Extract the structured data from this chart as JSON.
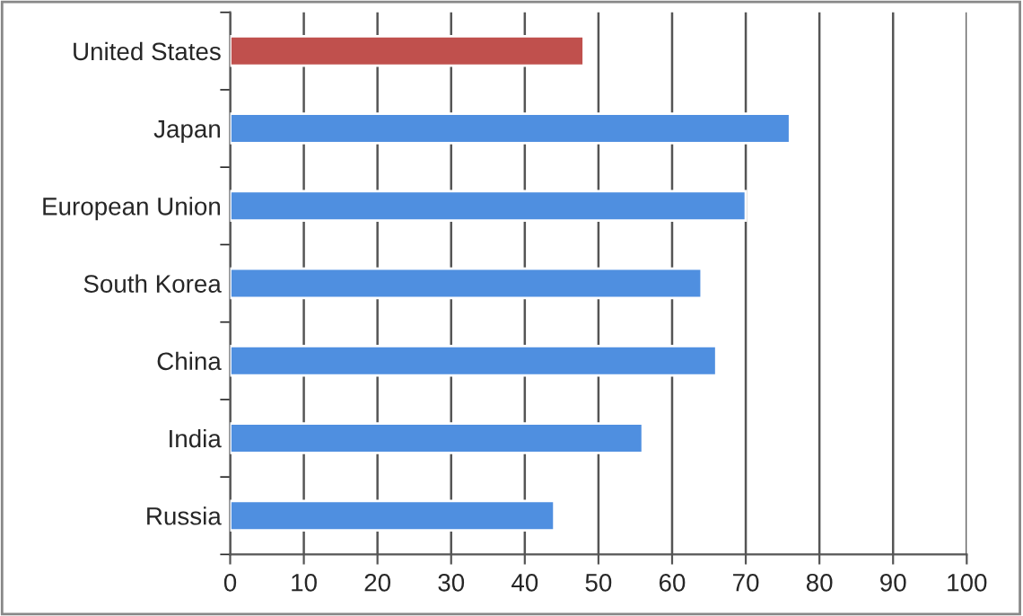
{
  "chart_data": {
    "type": "bar",
    "orientation": "horizontal",
    "categories": [
      "United States",
      "Japan",
      "European Union",
      "South Korea",
      "China",
      "India",
      "Russia"
    ],
    "values": [
      48,
      76,
      70,
      64,
      66,
      56,
      44
    ],
    "colors": [
      "#c0504d",
      "#4f8fe0",
      "#4f8fe0",
      "#4f8fe0",
      "#4f8fe0",
      "#4f8fe0",
      "#4f8fe0"
    ],
    "xlim": [
      0,
      100
    ],
    "xticks": [
      0,
      10,
      20,
      30,
      40,
      50,
      60,
      70,
      80,
      90,
      100
    ],
    "grid": "x",
    "legend": false
  }
}
